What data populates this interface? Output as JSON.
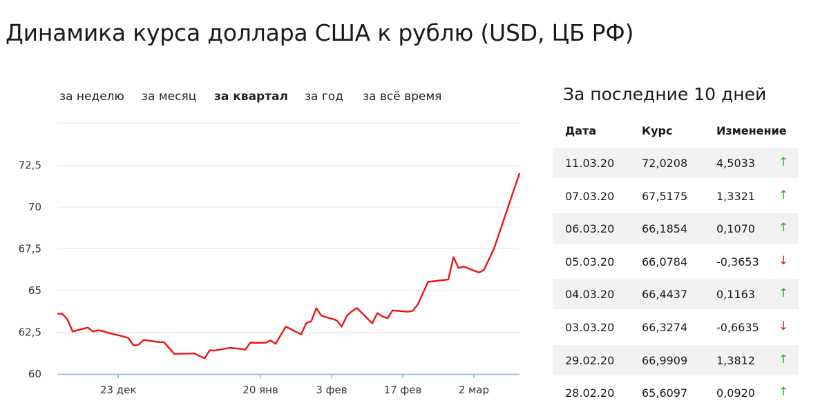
{
  "title": "Динамика курса доллара США к рублю (USD, ЦБ РФ)",
  "tabs": [
    {
      "label": "за неделю",
      "active": false
    },
    {
      "label": "за месяц",
      "active": false
    },
    {
      "label": "за квартал",
      "active": true
    },
    {
      "label": "за год",
      "active": false
    },
    {
      "label": "за всё время",
      "active": false
    }
  ],
  "chart_data": {
    "type": "line",
    "title": "",
    "xlabel": "",
    "ylabel": "",
    "ylim": [
      60,
      73.9
    ],
    "y_ticks": [
      "72,5",
      "70",
      "67,5",
      "65",
      "62,5",
      "60"
    ],
    "x_ticks": [
      {
        "label": "23 дек",
        "date": "2019-12-23"
      },
      {
        "label": "20 янв",
        "date": "2020-01-20"
      },
      {
        "label": "3 фев",
        "date": "2020-02-03"
      },
      {
        "label": "17 фев",
        "date": "2020-02-17"
      },
      {
        "label": "2 мар",
        "date": "2020-03-02"
      }
    ],
    "x_range": [
      "2019-12-11",
      "2020-03-11"
    ],
    "grid": true,
    "line_color": "#ee1111",
    "series": [
      {
        "name": "",
        "points": [
          [
            "2019-12-11",
            63.62
          ],
          [
            "2019-12-12",
            63.6
          ],
          [
            "2019-12-13",
            63.27
          ],
          [
            "2019-12-14",
            62.55
          ],
          [
            "2019-12-17",
            62.78
          ],
          [
            "2019-12-18",
            62.55
          ],
          [
            "2019-12-19",
            62.62
          ],
          [
            "2019-12-20",
            62.57
          ],
          [
            "2019-12-21",
            62.47
          ],
          [
            "2019-12-24",
            62.25
          ],
          [
            "2019-12-25",
            62.16
          ],
          [
            "2019-12-26",
            61.71
          ],
          [
            "2019-12-27",
            61.76
          ],
          [
            "2019-12-28",
            62.05
          ],
          [
            "2019-12-31",
            61.91
          ],
          [
            "2020-01-01",
            61.91
          ],
          [
            "2020-01-03",
            61.21
          ],
          [
            "2020-01-07",
            61.23
          ],
          [
            "2020-01-09",
            60.94
          ],
          [
            "2020-01-10",
            61.42
          ],
          [
            "2020-01-11",
            61.41
          ],
          [
            "2020-01-14",
            61.57
          ],
          [
            "2020-01-15",
            61.54
          ],
          [
            "2020-01-16",
            61.51
          ],
          [
            "2020-01-17",
            61.46
          ],
          [
            "2020-01-18",
            61.88
          ],
          [
            "2020-01-21",
            61.87
          ],
          [
            "2020-01-22",
            62.01
          ],
          [
            "2020-01-23",
            61.81
          ],
          [
            "2020-01-24",
            62.34
          ],
          [
            "2020-01-25",
            62.84
          ],
          [
            "2020-01-28",
            62.37
          ],
          [
            "2020-01-29",
            63.04
          ],
          [
            "2020-01-30",
            63.16
          ],
          [
            "2020-01-31",
            63.94
          ],
          [
            "2020-02-01",
            63.49
          ],
          [
            "2020-02-04",
            63.22
          ],
          [
            "2020-02-05",
            62.84
          ],
          [
            "2020-02-06",
            63.48
          ],
          [
            "2020-02-07",
            63.76
          ],
          [
            "2020-02-08",
            63.95
          ],
          [
            "2020-02-11",
            63.04
          ],
          [
            "2020-02-12",
            63.65
          ],
          [
            "2020-02-13",
            63.45
          ],
          [
            "2020-02-14",
            63.34
          ],
          [
            "2020-02-15",
            63.81
          ],
          [
            "2020-02-18",
            63.73
          ],
          [
            "2020-02-19",
            63.79
          ],
          [
            "2020-02-20",
            64.18
          ],
          [
            "2020-02-21",
            64.86
          ],
          [
            "2020-02-22",
            65.52
          ],
          [
            "2020-02-26",
            65.66
          ],
          [
            "2020-02-27",
            67.0
          ],
          [
            "2020-02-28",
            66.35
          ],
          [
            "2020-02-29",
            66.44
          ],
          [
            "2020-03-03",
            66.08
          ],
          [
            "2020-03-04",
            66.23
          ],
          [
            "2020-03-06",
            67.52
          ],
          [
            "2020-03-11",
            72.02
          ]
        ]
      }
    ]
  },
  "side": {
    "title": "За последние 10 дней",
    "headers": {
      "date": "Дата",
      "rate": "Курс",
      "change": "Изменение"
    },
    "rows": [
      {
        "date": "11.03.20",
        "rate": "72,0208",
        "change": "4,5033",
        "arrow": "↑",
        "dir": "up"
      },
      {
        "date": "07.03.20",
        "rate": "67,5175",
        "change": "1,3321",
        "arrow": "↑",
        "dir": "up"
      },
      {
        "date": "06.03.20",
        "rate": "66,1854",
        "change": "0,1070",
        "arrow": "↑",
        "dir": "up"
      },
      {
        "date": "05.03.20",
        "rate": "66,0784",
        "change": "-0,3653",
        "arrow": "↓",
        "dir": "down"
      },
      {
        "date": "04.03.20",
        "rate": "66,4437",
        "change": "0,1163",
        "arrow": "↑",
        "dir": "up"
      },
      {
        "date": "03.03.20",
        "rate": "66,3274",
        "change": "-0,6635",
        "arrow": "↓",
        "dir": "down"
      },
      {
        "date": "29.02.20",
        "rate": "66,9909",
        "change": "1,3812",
        "arrow": "↑",
        "dir": "up"
      },
      {
        "date": "28.02.20",
        "rate": "65,6097",
        "change": "0,0920",
        "arrow": "↑",
        "dir": "up"
      }
    ]
  }
}
